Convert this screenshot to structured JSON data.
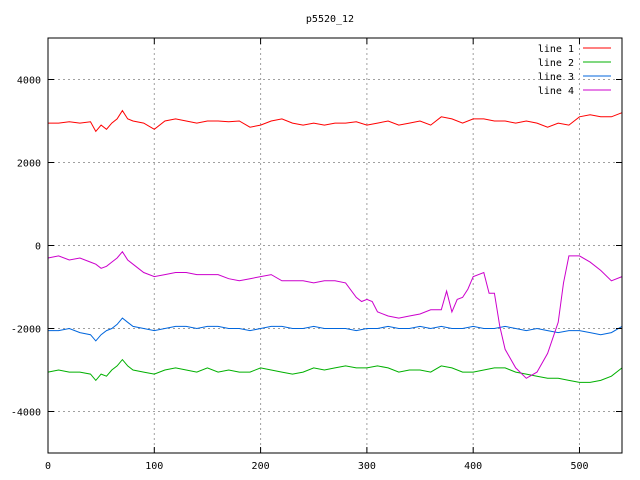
{
  "chart_data": {
    "type": "line",
    "title": "p5520_12",
    "xlabel": "",
    "ylabel": "",
    "xlim": [
      0,
      540
    ],
    "ylim": [
      -5000,
      5000
    ],
    "grid": true,
    "legend_position": "top-right",
    "x_ticks": [
      "0",
      "100",
      "200",
      "300",
      "400",
      "500"
    ],
    "y_ticks": [
      "4000",
      "2000",
      "0",
      "-2000",
      "-4000"
    ],
    "x_tick_values": [
      0,
      100,
      200,
      300,
      400,
      500
    ],
    "y_tick_values": [
      4000,
      2000,
      0,
      -2000,
      -4000
    ],
    "series": [
      {
        "name": "line 1",
        "color": "#ff0000",
        "x": [
          0,
          10,
          20,
          30,
          40,
          45,
          50,
          55,
          60,
          65,
          70,
          75,
          80,
          90,
          100,
          110,
          120,
          130,
          140,
          150,
          160,
          170,
          180,
          190,
          200,
          210,
          220,
          230,
          240,
          250,
          260,
          270,
          280,
          290,
          300,
          310,
          320,
          330,
          340,
          350,
          360,
          370,
          380,
          390,
          400,
          410,
          420,
          430,
          440,
          450,
          460,
          470,
          480,
          490,
          500,
          510,
          520,
          530,
          540
        ],
        "y": [
          2950,
          2950,
          2980,
          2950,
          2980,
          2750,
          2900,
          2800,
          2950,
          3050,
          3250,
          3050,
          3000,
          2950,
          2800,
          3000,
          3050,
          3000,
          2950,
          3000,
          3000,
          2980,
          3000,
          2850,
          2900,
          3000,
          3050,
          2950,
          2900,
          2950,
          2900,
          2950,
          2950,
          2980,
          2900,
          2950,
          3000,
          2900,
          2950,
          3000,
          2900,
          3100,
          3050,
          2950,
          3050,
          3050,
          3000,
          3000,
          2950,
          3000,
          2950,
          2850,
          2950,
          2900,
          3100,
          3150,
          3100,
          3100,
          3200
        ]
      },
      {
        "name": "line 2",
        "color": "#00b000",
        "x": [
          0,
          10,
          20,
          30,
          40,
          45,
          50,
          55,
          60,
          65,
          70,
          75,
          80,
          90,
          100,
          110,
          120,
          130,
          140,
          150,
          160,
          170,
          180,
          190,
          200,
          210,
          220,
          230,
          240,
          250,
          260,
          270,
          280,
          290,
          300,
          310,
          320,
          330,
          340,
          350,
          360,
          370,
          380,
          390,
          400,
          410,
          420,
          430,
          440,
          450,
          460,
          470,
          480,
          490,
          500,
          510,
          520,
          530,
          540
        ],
        "y": [
          -3050,
          -3000,
          -3050,
          -3050,
          -3100,
          -3250,
          -3100,
          -3150,
          -3000,
          -2900,
          -2750,
          -2900,
          -3000,
          -3050,
          -3100,
          -3000,
          -2950,
          -3000,
          -3050,
          -2950,
          -3050,
          -3000,
          -3050,
          -3050,
          -2950,
          -3000,
          -3050,
          -3100,
          -3050,
          -2950,
          -3000,
          -2950,
          -2900,
          -2950,
          -2950,
          -2900,
          -2950,
          -3050,
          -3000,
          -3000,
          -3050,
          -2900,
          -2950,
          -3050,
          -3050,
          -3000,
          -2950,
          -2950,
          -3050,
          -3100,
          -3150,
          -3200,
          -3200,
          -3250,
          -3300,
          -3300,
          -3250,
          -3150,
          -2950
        ]
      },
      {
        "name": "line 3",
        "color": "#0066dd",
        "x": [
          0,
          10,
          20,
          30,
          40,
          45,
          50,
          55,
          60,
          65,
          70,
          75,
          80,
          90,
          100,
          110,
          120,
          130,
          140,
          150,
          160,
          170,
          180,
          190,
          200,
          210,
          220,
          230,
          240,
          250,
          260,
          270,
          280,
          290,
          300,
          310,
          320,
          330,
          340,
          350,
          360,
          370,
          380,
          390,
          400,
          410,
          420,
          430,
          440,
          450,
          460,
          470,
          480,
          490,
          500,
          510,
          520,
          530,
          540
        ],
        "y": [
          -2050,
          -2050,
          -2000,
          -2100,
          -2150,
          -2300,
          -2150,
          -2050,
          -2000,
          -1900,
          -1750,
          -1850,
          -1950,
          -2000,
          -2050,
          -2000,
          -1950,
          -1950,
          -2000,
          -1950,
          -1950,
          -2000,
          -2000,
          -2050,
          -2000,
          -1950,
          -1950,
          -2000,
          -2000,
          -1950,
          -2000,
          -2000,
          -2000,
          -2050,
          -2000,
          -2000,
          -1950,
          -2000,
          -2000,
          -1950,
          -2000,
          -1950,
          -2000,
          -2000,
          -1950,
          -2000,
          -2000,
          -1950,
          -2000,
          -2050,
          -2000,
          -2050,
          -2100,
          -2050,
          -2050,
          -2100,
          -2150,
          -2100,
          -1950
        ]
      },
      {
        "name": "line 4",
        "color": "#cc00cc",
        "x": [
          0,
          10,
          20,
          30,
          40,
          45,
          50,
          55,
          60,
          65,
          70,
          75,
          80,
          90,
          100,
          110,
          120,
          130,
          140,
          150,
          160,
          170,
          180,
          190,
          200,
          210,
          220,
          230,
          240,
          250,
          260,
          270,
          280,
          290,
          295,
          300,
          305,
          310,
          320,
          330,
          340,
          350,
          360,
          370,
          375,
          380,
          385,
          390,
          395,
          400,
          410,
          415,
          420,
          425,
          430,
          440,
          450,
          460,
          470,
          480,
          485,
          490,
          500,
          510,
          520,
          530,
          540
        ],
        "y": [
          -300,
          -250,
          -350,
          -300,
          -400,
          -450,
          -550,
          -500,
          -400,
          -300,
          -150,
          -350,
          -450,
          -650,
          -750,
          -700,
          -650,
          -650,
          -700,
          -700,
          -700,
          -800,
          -850,
          -800,
          -750,
          -700,
          -850,
          -850,
          -850,
          -900,
          -850,
          -850,
          -900,
          -1250,
          -1350,
          -1300,
          -1350,
          -1600,
          -1700,
          -1750,
          -1700,
          -1650,
          -1550,
          -1550,
          -1100,
          -1600,
          -1300,
          -1250,
          -1050,
          -750,
          -650,
          -1150,
          -1150,
          -1950,
          -2500,
          -2950,
          -3200,
          -3050,
          -2600,
          -1850,
          -900,
          -250,
          -250,
          -400,
          -600,
          -850,
          -750
        ]
      }
    ]
  }
}
